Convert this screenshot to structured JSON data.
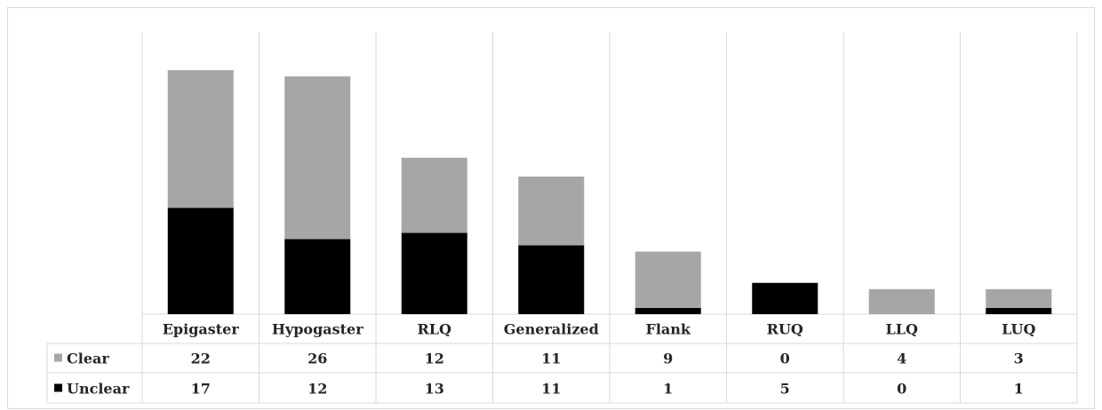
{
  "chart_data": {
    "type": "bar",
    "stacked": true,
    "categories": [
      "Epigaster",
      "Hypogaster",
      "RLQ",
      "Generalized",
      "Flank",
      "RUQ",
      "LLQ",
      "LUQ"
    ],
    "series": [
      {
        "name": "Clear",
        "values": [
          22,
          26,
          12,
          11,
          9,
          0,
          4,
          3
        ],
        "color": "#a6a6a6"
      },
      {
        "name": "Unclear",
        "values": [
          17,
          12,
          13,
          11,
          1,
          5,
          0,
          1
        ],
        "color": "#000000"
      }
    ],
    "stack_order_bottom_to_top": [
      "Unclear",
      "Clear"
    ],
    "ylim": [
      0,
      40
    ],
    "grid": {
      "vertical_category_lines": true,
      "horizontal": false
    },
    "data_table": true,
    "legend": "in-data-table",
    "title": "",
    "xlabel": "",
    "ylabel": ""
  }
}
